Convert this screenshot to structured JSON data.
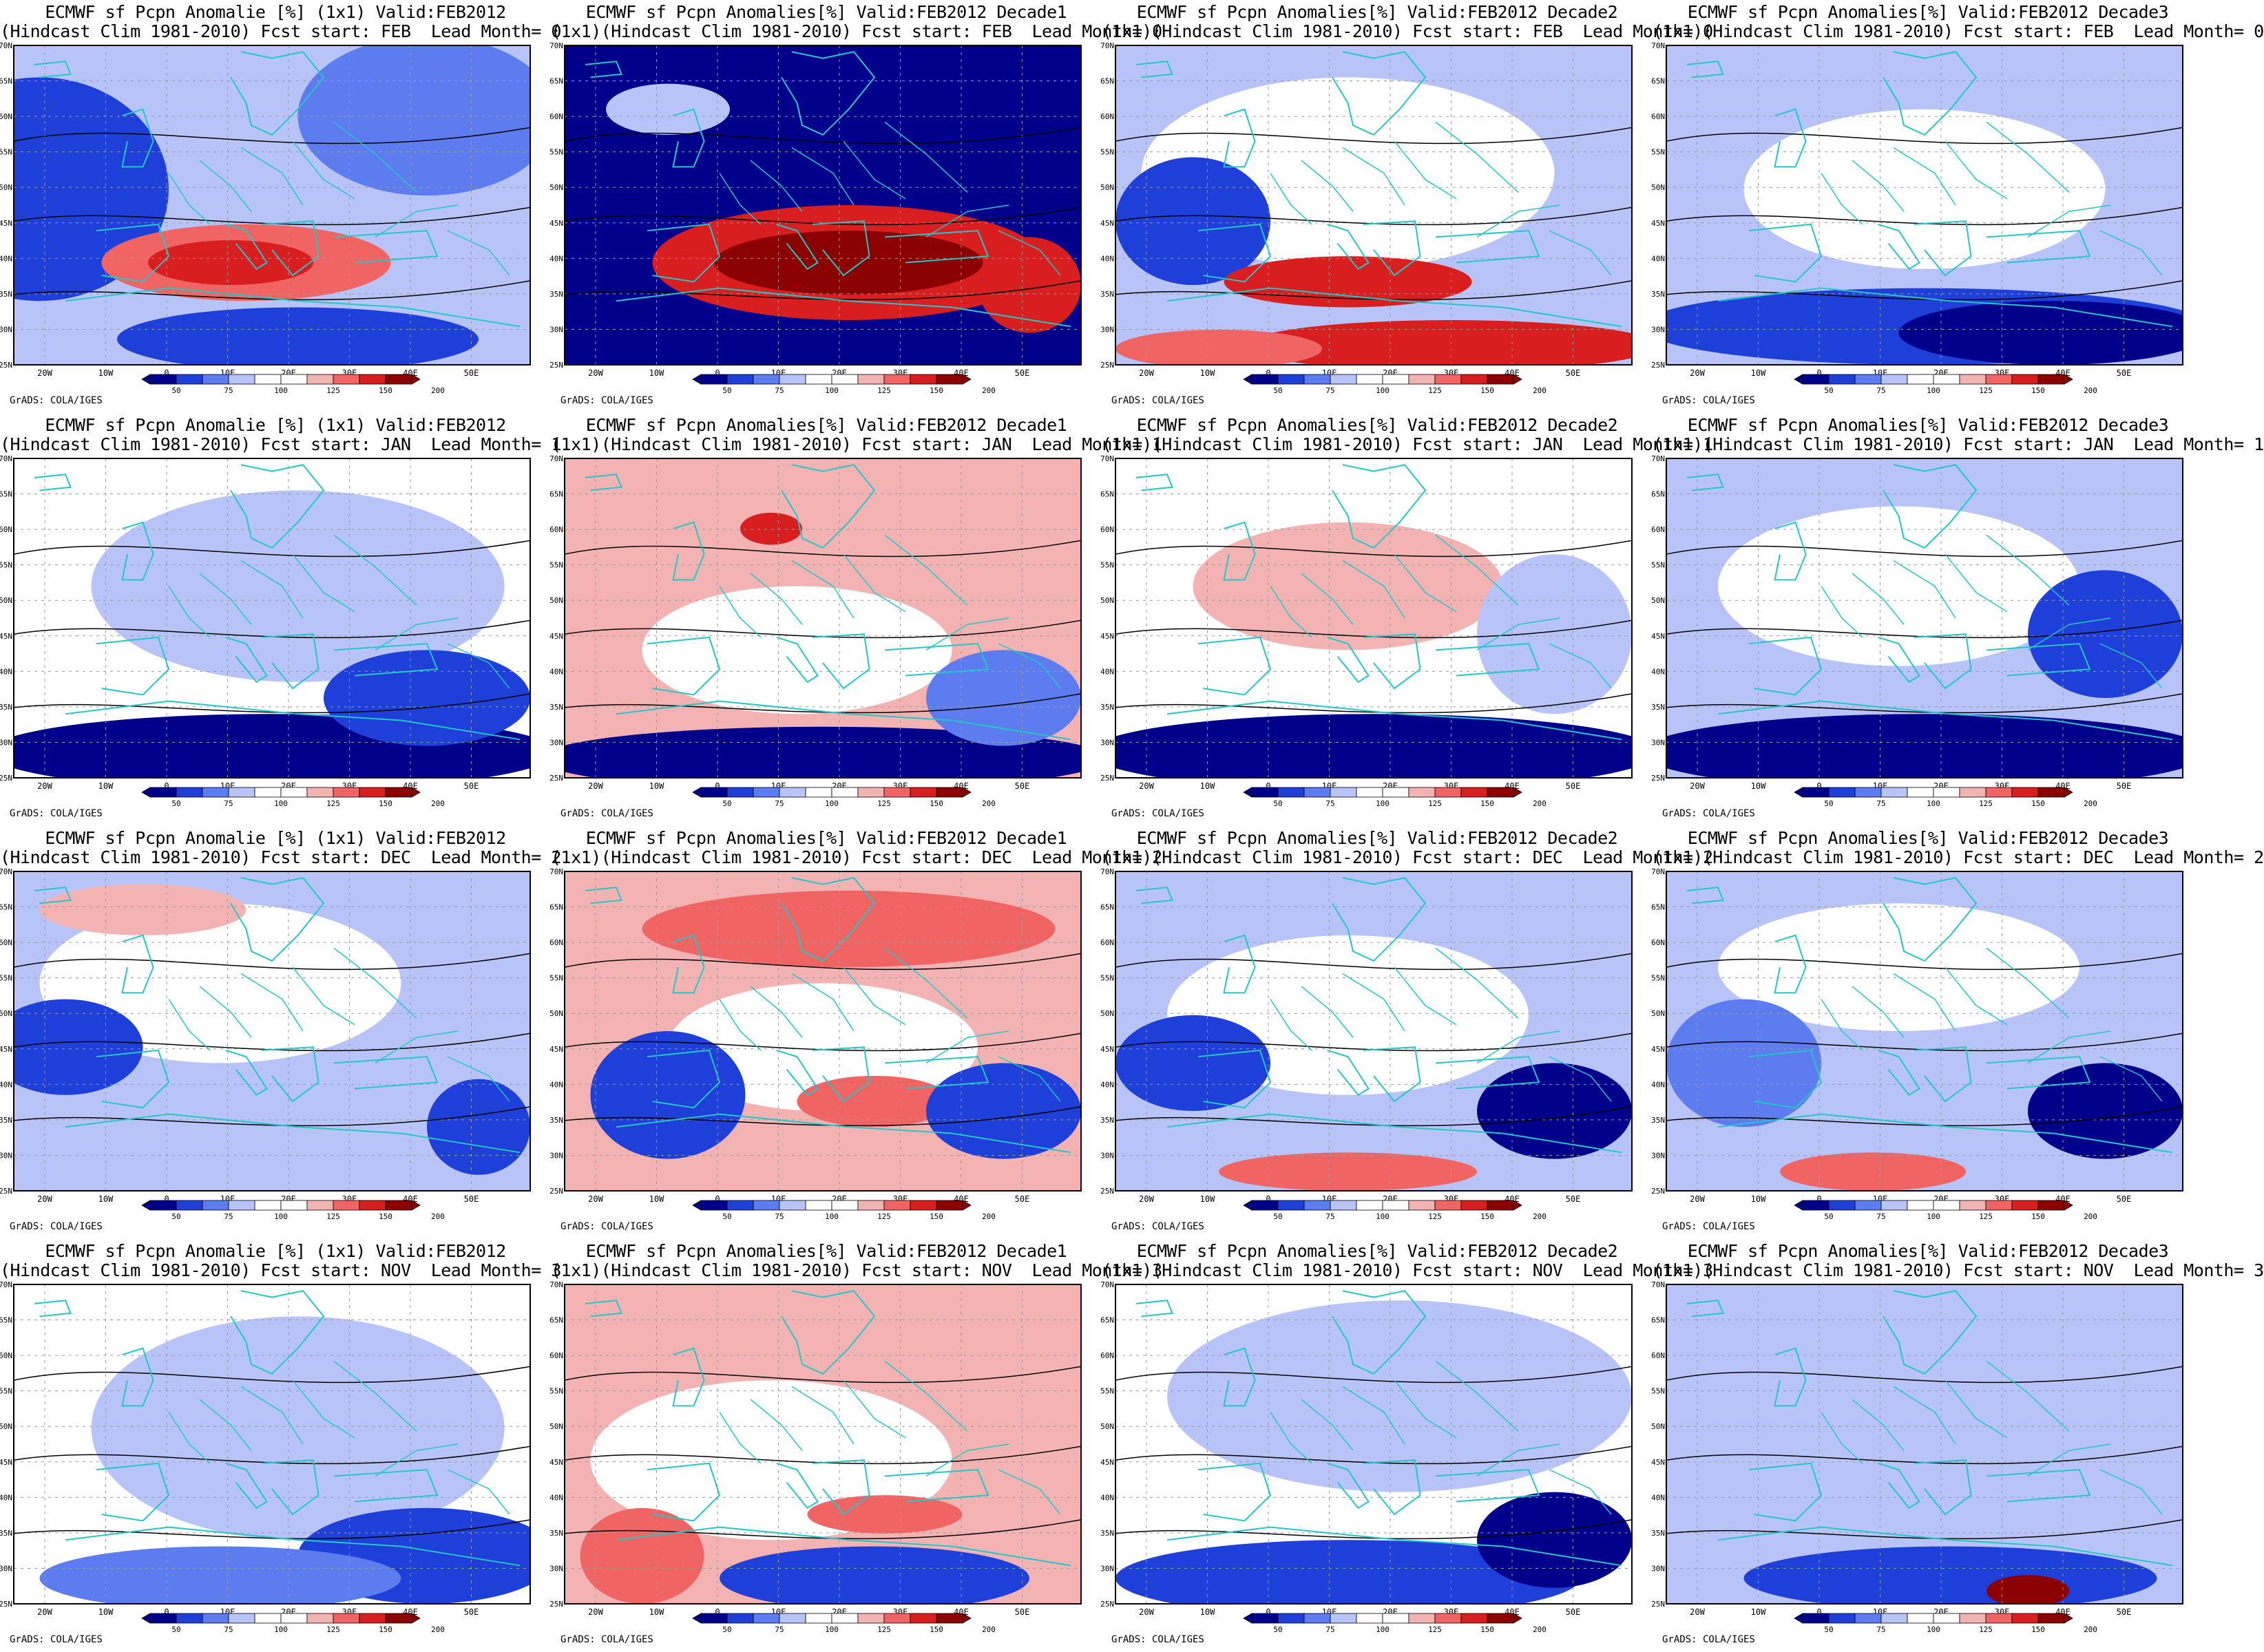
{
  "panels": [
    {
      "t1": "ECMWF sf Pcpn Anomalie [%] (1x1) Valid:FEB2012",
      "t2": "(Hindcast Clim 1981-2010) Fcst start: FEB  Lead Month= 0",
      "pattern": "lead0_month"
    },
    {
      "t1": "ECMWF sf Pcpn Anomalies[%] Valid:FEB2012 Decade1",
      "t2": "(1x1)(Hindcast Clim 1981-2010) Fcst start: FEB  Lead Month= 0",
      "pattern": "lead0_dec1"
    },
    {
      "t1": "ECMWF sf Pcpn Anomalies[%] Valid:FEB2012 Decade2",
      "t2": "(1x1)(Hindcast Clim 1981-2010) Fcst start: FEB  Lead Month= 0",
      "pattern": "lead0_dec2"
    },
    {
      "t1": "ECMWF sf Pcpn Anomalies[%] Valid:FEB2012 Decade3",
      "t2": "(1x1)(Hindcast Clim 1981-2010) Fcst start: FEB  Lead Month= 0",
      "pattern": "lead0_dec3"
    },
    {
      "t1": "ECMWF sf Pcpn Anomalie [%] (1x1) Valid:FEB2012",
      "t2": "(Hindcast Clim 1981-2010) Fcst start: JAN  Lead Month= 1",
      "pattern": "lead1_month"
    },
    {
      "t1": "ECMWF sf Pcpn Anomalies[%] Valid:FEB2012 Decade1",
      "t2": "(1x1)(Hindcast Clim 1981-2010) Fcst start: JAN  Lead Month= 1",
      "pattern": "lead1_dec1"
    },
    {
      "t1": "ECMWF sf Pcpn Anomalies[%] Valid:FEB2012 Decade2",
      "t2": "(1x1)(Hindcast Clim 1981-2010) Fcst start: JAN  Lead Month= 1",
      "pattern": "lead1_dec2"
    },
    {
      "t1": "ECMWF sf Pcpn Anomalies[%] Valid:FEB2012 Decade3",
      "t2": "(1x1)(Hindcast Clim 1981-2010) Fcst start: JAN  Lead Month= 1",
      "pattern": "lead1_dec3"
    },
    {
      "t1": "ECMWF sf Pcpn Anomalie [%] (1x1) Valid:FEB2012",
      "t2": "(Hindcast Clim 1981-2010) Fcst start: DEC  Lead Month= 2",
      "pattern": "lead2_month"
    },
    {
      "t1": "ECMWF sf Pcpn Anomalies[%] Valid:FEB2012 Decade1",
      "t2": "(1x1)(Hindcast Clim 1981-2010) Fcst start: DEC  Lead Month= 2",
      "pattern": "lead2_dec1"
    },
    {
      "t1": "ECMWF sf Pcpn Anomalies[%] Valid:FEB2012 Decade2",
      "t2": "(1x1)(Hindcast Clim 1981-2010) Fcst start: DEC  Lead Month= 2",
      "pattern": "lead2_dec2"
    },
    {
      "t1": "ECMWF sf Pcpn Anomalies[%] Valid:FEB2012 Decade3",
      "t2": "(1x1)(Hindcast Clim 1981-2010) Fcst start: DEC  Lead Month= 2",
      "pattern": "lead2_dec3"
    },
    {
      "t1": "ECMWF sf Pcpn Anomalie [%] (1x1) Valid:FEB2012",
      "t2": "(Hindcast Clim 1981-2010) Fcst start: NOV  Lead Month= 3",
      "pattern": "lead3_month"
    },
    {
      "t1": "ECMWF sf Pcpn Anomalies[%] Valid:FEB2012 Decade1",
      "t2": "(1x1)(Hindcast Clim 1981-2010) Fcst start: NOV  Lead Month= 3",
      "pattern": "lead3_dec1"
    },
    {
      "t1": "ECMWF sf Pcpn Anomalies[%] Valid:FEB2012 Decade2",
      "t2": "(1x1)(Hindcast Clim 1981-2010) Fcst start: NOV  Lead Month= 3",
      "pattern": "lead3_dec2"
    },
    {
      "t1": "ECMWF sf Pcpn Anomalies[%] Valid:FEB2012 Decade3",
      "t2": "(1x1)(Hindcast Clim 1981-2010) Fcst start: NOV  Lead Month= 3",
      "pattern": "lead3_dec3"
    }
  ],
  "lat_labels": [
    "70N",
    "65N",
    "60N",
    "55N",
    "50N",
    "45N",
    "40N",
    "35N",
    "30N",
    "25N"
  ],
  "lon_labels": [
    "20W",
    "10W",
    "0",
    "10E",
    "20E",
    "30E",
    "40E",
    "50E"
  ],
  "colorbar": {
    "labels": [
      "50",
      "75",
      "100",
      "125",
      "150",
      "200"
    ],
    "colors": [
      "#00008b",
      "#1e3fd8",
      "#5c7cf0",
      "#b8c3f7",
      "#ffffff",
      "#ffffff",
      "#f4b3b3",
      "#f06464",
      "#d81e1e",
      "#8b0000"
    ]
  },
  "credit": "GrADS: COLA/IGES",
  "colors": {
    "land_outline": "#22c7c7",
    "contour": "#000000",
    "grid_line": "#9a9a9a"
  }
}
